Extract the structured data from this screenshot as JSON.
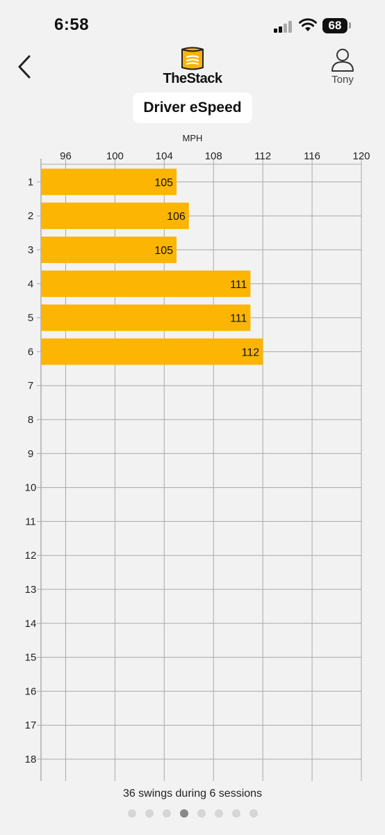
{
  "status_bar": {
    "time": "6:58",
    "battery": "68"
  },
  "header": {
    "logo_text": "TheStack",
    "user_name": "Tony"
  },
  "title": "Driver eSpeed",
  "chart_data": {
    "type": "bar",
    "orientation": "horizontal",
    "xlabel": "MPH",
    "xlim": [
      94,
      120
    ],
    "x_ticks": [
      96,
      100,
      104,
      108,
      112,
      116,
      120
    ],
    "categories": [
      "1",
      "2",
      "3",
      "4",
      "5",
      "6",
      "7",
      "8",
      "9",
      "10",
      "11",
      "12",
      "13",
      "14",
      "15",
      "16",
      "17",
      "18"
    ],
    "values": [
      105,
      106,
      105,
      111,
      111,
      112,
      null,
      null,
      null,
      null,
      null,
      null,
      null,
      null,
      null,
      null,
      null,
      null
    ],
    "grid": true,
    "bar_color": "#fcb503"
  },
  "footer": {
    "summary": "36 swings during 6 sessions",
    "page_count": 8,
    "active_page": 3
  }
}
